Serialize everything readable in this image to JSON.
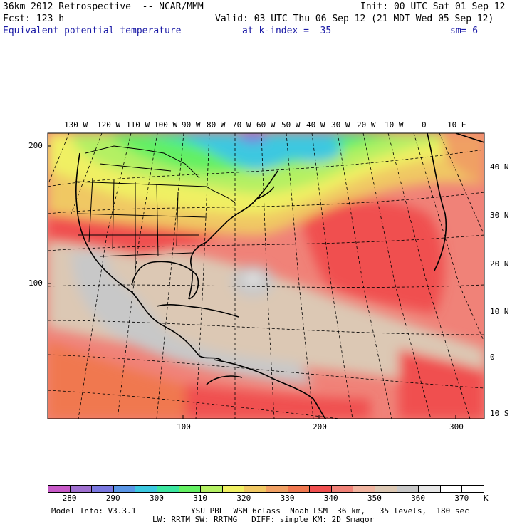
{
  "header": {
    "line1_left": "36km 2012 Retrospective  -- NCAR/MMM",
    "line1_right": "Init: 00 UTC Sat 01 Sep 12",
    "line2_left": "Fcst: 123 h",
    "line2_right": "Valid: 03 UTC Thu 06 Sep 12 (21 MDT Wed 05 Sep 12)",
    "line3_field": "Equivalent potential temperature",
    "line3_level": "at k-index =  35",
    "line3_smooth": "sm= 6"
  },
  "longitude_labels": [
    "130 W",
    "120 W",
    "110 W",
    "100 W",
    "90 W",
    "80 W",
    "70 W",
    "60 W",
    "50 W",
    "40 W",
    "30 W",
    "20 W",
    "10 W",
    "0",
    "10 E"
  ],
  "latitude_labels": [
    "40 N",
    "30 N",
    "20 N",
    "10 N",
    "0",
    "10 S"
  ],
  "left_axis_labels": [
    "200",
    "100"
  ],
  "bottom_axis_labels": [
    "100",
    "200",
    "300"
  ],
  "colorbar": {
    "labels": [
      "280",
      "290",
      "300",
      "310",
      "320",
      "330",
      "340",
      "350",
      "360",
      "370"
    ],
    "unit": "K",
    "colors": [
      "#c85ac8",
      "#a070d0",
      "#7a78e0",
      "#5a96e6",
      "#3cc8e0",
      "#3ce6a0",
      "#64f064",
      "#b4f064",
      "#f0f064",
      "#f0c864",
      "#f0a064",
      "#f07850",
      "#f05050",
      "#f08278",
      "#f0b4a0",
      "#dcc8b4",
      "#c8c8c8",
      "#e6e6e6",
      "#ffffff",
      "#ffffff"
    ]
  },
  "footer": {
    "line1_left": "Model Info: V3.3.1",
    "line1_right": "YSU PBL  WSM 6class  Noah LSM  36 km,   35 levels,  180 sec",
    "line2": "LW: RRTM SW: RRTMG   DIFF: simple KM: 2D Smagor"
  }
}
